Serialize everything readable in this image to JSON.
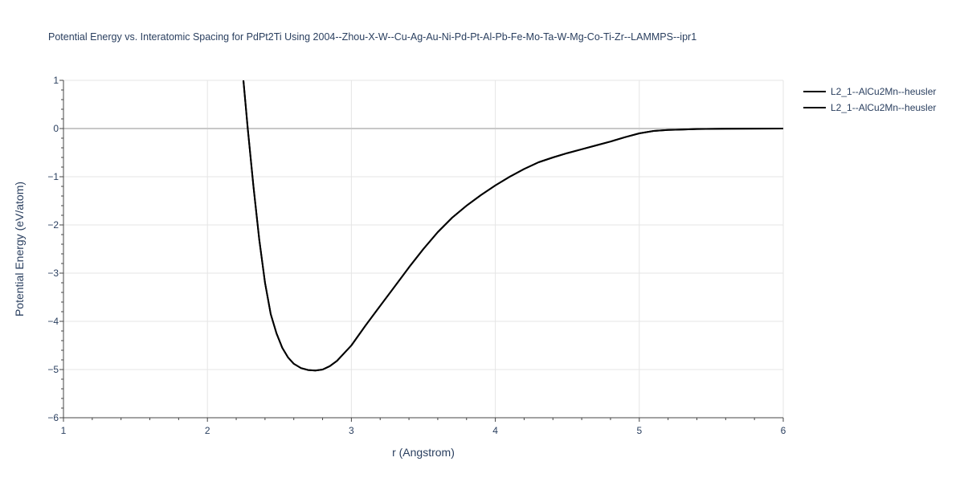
{
  "chart_data": {
    "type": "line",
    "title": "Potential Energy vs. Interatomic Spacing for PdPt2Ti Using 2004--Zhou-X-W--Cu-Ag-Au-Ni-Pd-Pt-Al-Pb-Fe-Mo-Ta-W-Mg-Co-Ti-Zr--LAMMPS--ipr1",
    "xlabel": "r (Angstrom)",
    "ylabel": "Potential Energy (eV/atom)",
    "xlim": [
      1,
      6
    ],
    "ylim": [
      -6,
      1
    ],
    "x_ticks": [
      "1",
      "2",
      "3",
      "4",
      "5",
      "6"
    ],
    "y_ticks": [
      "1",
      "0",
      "−1",
      "−2",
      "−3",
      "−4",
      "−5",
      "−6"
    ],
    "grid": true,
    "legend_position": "top-right",
    "colors": {
      "line": "#000000",
      "grid": "#e5e5e5",
      "zeroline": "#c8c8c8",
      "text": "#2a3f5f"
    },
    "series": [
      {
        "name": "L2_1--AlCu2Mn--heusler",
        "x": [
          2.25,
          2.28,
          2.32,
          2.36,
          2.4,
          2.44,
          2.48,
          2.52,
          2.56,
          2.6,
          2.65,
          2.7,
          2.75,
          2.8,
          2.85,
          2.9,
          3.0,
          3.1,
          3.2,
          3.3,
          3.4,
          3.5,
          3.6,
          3.7,
          3.8,
          3.9,
          4.0,
          4.1,
          4.2,
          4.3,
          4.4,
          4.5,
          4.6,
          4.7,
          4.8,
          4.9,
          5.0,
          5.1,
          5.2,
          5.3,
          5.4,
          5.6,
          5.8,
          6.0
        ],
        "y": [
          1.0,
          0.0,
          -1.2,
          -2.3,
          -3.2,
          -3.85,
          -4.25,
          -4.55,
          -4.75,
          -4.88,
          -4.97,
          -5.01,
          -5.02,
          -5.0,
          -4.93,
          -4.82,
          -4.5,
          -4.08,
          -3.68,
          -3.28,
          -2.88,
          -2.5,
          -2.15,
          -1.85,
          -1.6,
          -1.38,
          -1.18,
          -1.0,
          -0.84,
          -0.7,
          -0.6,
          -0.51,
          -0.43,
          -0.35,
          -0.27,
          -0.18,
          -0.1,
          -0.05,
          -0.03,
          -0.02,
          -0.01,
          -0.005,
          -0.002,
          0.0
        ]
      },
      {
        "name": "L2_1--AlCu2Mn--heusler",
        "x": [
          2.25,
          2.28,
          2.32,
          2.36,
          2.4,
          2.44,
          2.48,
          2.52,
          2.56,
          2.6,
          2.65,
          2.7,
          2.75,
          2.8,
          2.85,
          2.9,
          3.0,
          3.1,
          3.2,
          3.3,
          3.4,
          3.5,
          3.6,
          3.7,
          3.8,
          3.9,
          4.0,
          4.1,
          4.2,
          4.3,
          4.4,
          4.5,
          4.6,
          4.7,
          4.8,
          4.9,
          5.0,
          5.1,
          5.2,
          5.3,
          5.4,
          5.6,
          5.8,
          6.0
        ],
        "y": [
          1.0,
          0.0,
          -1.2,
          -2.3,
          -3.2,
          -3.85,
          -4.25,
          -4.55,
          -4.75,
          -4.88,
          -4.97,
          -5.01,
          -5.02,
          -5.0,
          -4.93,
          -4.82,
          -4.5,
          -4.08,
          -3.68,
          -3.28,
          -2.88,
          -2.5,
          -2.15,
          -1.85,
          -1.6,
          -1.38,
          -1.18,
          -1.0,
          -0.84,
          -0.7,
          -0.6,
          -0.51,
          -0.43,
          -0.35,
          -0.27,
          -0.18,
          -0.1,
          -0.05,
          -0.03,
          -0.02,
          -0.01,
          -0.005,
          -0.002,
          0.0
        ]
      }
    ]
  }
}
